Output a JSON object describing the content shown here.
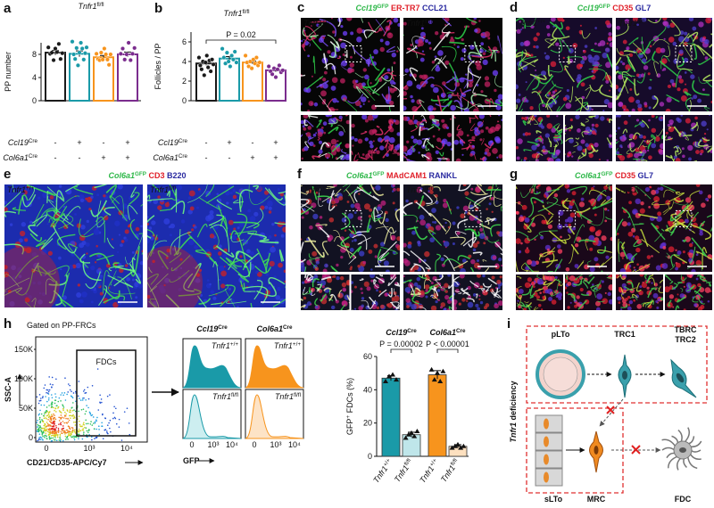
{
  "chart_data": [
    {
      "panel": "a",
      "type": "bar",
      "title": {
        "gene": "Tnfr1",
        "sup": "fl/fl"
      },
      "y_label": "PP number",
      "categories": [
        null,
        null,
        null,
        null
      ],
      "values": [
        8.3,
        8.1,
        7.5,
        8.0
      ],
      "errors": [
        0.4,
        0.5,
        0.3,
        0.4
      ],
      "points": [
        [
          9.2,
          8.1,
          8.3,
          7.0,
          9.0,
          8.4,
          9.8,
          7.2,
          8.2
        ],
        [
          10.2,
          8.0,
          7.2,
          9.1,
          6.1,
          8.3,
          10.0,
          9.0,
          7.1,
          8.2,
          9.2
        ],
        [
          8.1,
          7.2,
          7.0,
          8.3,
          7.1,
          9.0,
          8.0,
          7.1,
          6.2,
          8.0
        ],
        [
          8.1,
          9.0,
          7.1,
          8.0,
          10.0,
          7.0,
          8.1,
          9.1
        ]
      ],
      "colors": [
        "#1a1a1a",
        "#1a9aa8",
        "#f7941d",
        "#7b2d8e"
      ],
      "ylim": [
        0,
        10
      ],
      "yticks": [
        0,
        4,
        8
      ],
      "genotype": [
        {
          "gene": "Ccl19",
          "sup": "Cre",
          "signs": [
            "-",
            "+",
            "-",
            "+"
          ]
        },
        {
          "gene": "Col6a1",
          "sup": "Cre",
          "signs": [
            "-",
            "-",
            "+",
            "+"
          ]
        }
      ]
    },
    {
      "panel": "b",
      "type": "bar",
      "title": {
        "gene": "Tnfr1",
        "sup": "fl/fl"
      },
      "y_label": "Follicles / PP",
      "categories": [
        null,
        null,
        null,
        null
      ],
      "values": [
        3.8,
        4.3,
        3.9,
        3.1
      ],
      "errors": [
        0.2,
        0.2,
        0.15,
        0.15
      ],
      "points": [
        [
          4.4,
          3.6,
          3.2,
          4.0,
          2.6,
          3.9,
          4.6,
          3.4,
          4.1,
          3.0,
          4.2,
          3.7
        ],
        [
          5.3,
          4.4,
          3.8,
          4.9,
          4.0,
          3.5,
          4.6,
          4.2,
          5.0,
          3.9
        ],
        [
          4.6,
          3.9,
          3.5,
          4.0,
          3.3,
          4.2,
          3.8,
          4.4,
          3.6,
          3.9
        ],
        [
          3.5,
          3.0,
          2.7,
          3.3,
          2.4,
          3.2,
          3.6,
          2.9,
          3.1
        ]
      ],
      "colors": [
        "#1a1a1a",
        "#1a9aa8",
        "#f7941d",
        "#7b2d8e"
      ],
      "ylim": [
        0,
        7
      ],
      "yticks": [
        0,
        2,
        4,
        6
      ],
      "annotation": "P = 0.02",
      "genotype": [
        {
          "gene": "Ccl19",
          "sup": "Cre",
          "signs": [
            "-",
            "+",
            "-",
            "+"
          ]
        },
        {
          "gene": "Col6a1",
          "sup": "Cre",
          "signs": [
            "-",
            "-",
            "+",
            "+"
          ]
        }
      ]
    },
    {
      "panel": "h",
      "type": "bar",
      "y_label": {
        "main": "GFP",
        "sup": "+",
        "rest": " FDCs (%)"
      },
      "groups": [
        {
          "gene": "Ccl19",
          "sup": "Cre"
        },
        {
          "gene": "Col6a1",
          "sup": "Cre"
        }
      ],
      "categories": [
        {
          "gene": "Tnfr1",
          "sup": "+/+"
        },
        {
          "gene": "Tnfr1",
          "sup": "fl/fl"
        },
        {
          "gene": "Tnfr1",
          "sup": "+/+"
        },
        {
          "gene": "Tnfr1",
          "sup": "fl/fl"
        }
      ],
      "values": [
        47,
        13,
        49,
        6
      ],
      "errors": [
        1.5,
        1.5,
        2.5,
        1
      ],
      "points": [
        [
          45,
          48,
          49,
          46
        ],
        [
          11,
          13,
          14,
          12,
          15
        ],
        [
          52,
          46,
          50,
          45,
          51
        ],
        [
          5,
          6,
          7,
          5,
          6
        ]
      ],
      "colors": [
        "#1a9aa8",
        "#bfe6ea",
        "#f7941d",
        "#fde0bf"
      ],
      "ylim": [
        0,
        60
      ],
      "yticks": [
        0,
        20,
        40,
        60
      ],
      "annotations": [
        "P = 0.00002",
        "P < 0.00001"
      ]
    }
  ],
  "micrographs": [
    {
      "panel": "c",
      "stains": [
        {
          "gene": "Ccl19",
          "sup": "GFP",
          "color": "#2fb84a"
        },
        {
          "name": "ER-TR7",
          "color": "#e0202a"
        },
        {
          "name": "CCL21",
          "color": "#2a2aa0"
        }
      ],
      "images": [
        {
          "gene": "Tnfr1",
          "sup": "+/+"
        },
        {
          "gene": "Tnfr1",
          "sup": "fl/fl"
        }
      ]
    },
    {
      "panel": "d",
      "stains": [
        {
          "gene": "Ccl19",
          "sup": "GFP",
          "color": "#2fb84a"
        },
        {
          "name": "CD35",
          "color": "#e0202a"
        },
        {
          "name": "GL7",
          "color": "#2a2aa0"
        }
      ],
      "images": [
        {
          "gene": "Tnfr1",
          "sup": "+/+"
        },
        {
          "gene": "Tnfr1",
          "sup": "fl/fl"
        }
      ]
    },
    {
      "panel": "e",
      "stains": [
        {
          "gene": "Col6a1",
          "sup": "GFP",
          "color": "#2fb84a"
        },
        {
          "name": "CD3",
          "color": "#e0202a"
        },
        {
          "name": "B220",
          "color": "#2a2aa0"
        }
      ],
      "images": [
        {
          "gene": "Tnfr1",
          "sup": "+/+"
        },
        {
          "gene": "Tnfr1",
          "sup": "fl/fl"
        }
      ]
    },
    {
      "panel": "f",
      "stains": [
        {
          "gene": "Col6a1",
          "sup": "GFP",
          "color": "#2fb84a"
        },
        {
          "name": "MAdCAM1",
          "color": "#e0202a"
        },
        {
          "name": "RANKL",
          "color": "#2a2aa0"
        }
      ],
      "images": [
        {
          "gene": "Tnfr1",
          "sup": "+/+"
        },
        {
          "gene": "Tnfr1",
          "sup": "fl/fl"
        }
      ]
    },
    {
      "panel": "g",
      "stains": [
        {
          "gene": "Col6a1",
          "sup": "GFP",
          "color": "#2fb84a"
        },
        {
          "name": "CD35",
          "color": "#e0202a"
        },
        {
          "name": "GL7",
          "color": "#2a2aa0"
        }
      ],
      "images": [
        {
          "gene": "Tnfr1",
          "sup": "+/+"
        },
        {
          "gene": "Tnfr1",
          "sup": "fl/fl"
        }
      ]
    }
  ],
  "flow": {
    "gate_title": "Gated on PP-FRCs",
    "gate": "FDCs",
    "y_label": "SSC-A",
    "x_label": "CD21/CD35-APC/Cy7",
    "yticks": [
      "150K",
      "100K",
      "50K",
      "0"
    ],
    "xticks": [
      "0",
      "10³",
      "10⁴"
    ],
    "histograms": {
      "columns": [
        {
          "gene": "Ccl19",
          "sup": "Cre"
        },
        {
          "gene": "Col6a1",
          "sup": "Cre"
        }
      ],
      "rows": [
        {
          "gene": "Tnfr1",
          "sup": "+/+"
        },
        {
          "gene": "Tnfr1",
          "sup": "fl/fl"
        }
      ],
      "x_label": "GFP",
      "xticks": [
        "0",
        "10³",
        "10⁴"
      ]
    }
  },
  "diagram": {
    "panel": "i",
    "side_label": {
      "gene": "Tnfr1",
      "rest": " deficiency"
    },
    "nodes": [
      "pLTo",
      "TRC1",
      "TBRC",
      "TRC2",
      "sLTo",
      "MRC",
      "FDC"
    ]
  }
}
